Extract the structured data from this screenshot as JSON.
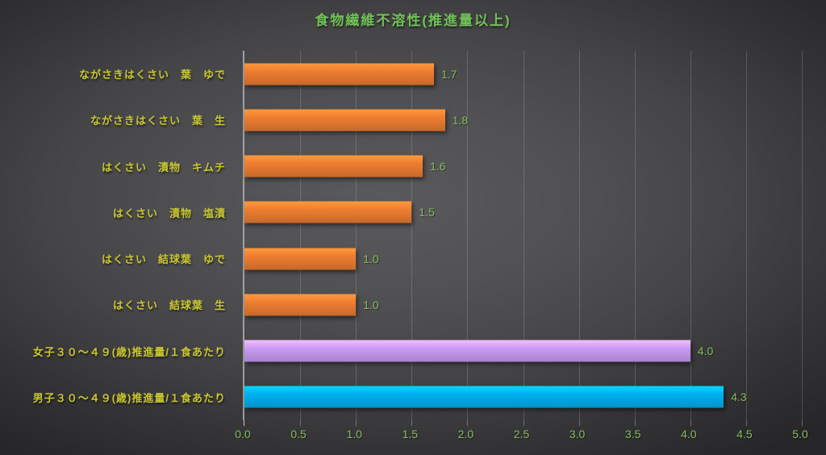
{
  "title": "食物繊維不溶性(推進量以上)",
  "colors": {
    "title_text": "#72c159",
    "category_text": "#c9c72f",
    "value_text": "#87bc5d",
    "tick_text": "#87bc5d",
    "series": {
      "orange": "#ed7d31",
      "purple": "#c89bf2",
      "blue": "#00b0f0"
    },
    "gridline": "rgba(225,225,225,0.20)",
    "axis_line": "rgba(190,190,190,0.75)"
  },
  "chart_data": {
    "type": "bar",
    "orientation": "horizontal",
    "title": "食物繊維不溶性(推進量以上)",
    "categories": [
      "ながさきはくさい　葉　ゆで",
      "ながさきはくさい　葉　生",
      "はくさい　漬物　キムチ",
      "はくさい　漬物　塩漬",
      "はくさい　結球葉　ゆで",
      "はくさい　結球葉　生",
      "女子３０～４９(歳)推進量/１食あたり",
      "男子３０～４９(歳)推進量/１食あたり"
    ],
    "values": [
      1.7,
      1.8,
      1.6,
      1.5,
      1.0,
      1.0,
      4.0,
      4.3
    ],
    "value_labels": [
      "1.7",
      "1.8",
      "1.6",
      "1.5",
      "1.0",
      "1.0",
      "4.0",
      "4.3"
    ],
    "bar_colors": [
      "orange",
      "orange",
      "orange",
      "orange",
      "orange",
      "orange",
      "purple",
      "blue"
    ],
    "xlabel": "",
    "ylabel": "",
    "xlim": [
      0.0,
      5.0
    ],
    "x_ticks": [
      "0.0",
      "0.5",
      "1.0",
      "1.5",
      "2.0",
      "2.5",
      "3.0",
      "3.5",
      "4.0",
      "4.5",
      "5.0"
    ],
    "grid": true,
    "legend": "none"
  }
}
